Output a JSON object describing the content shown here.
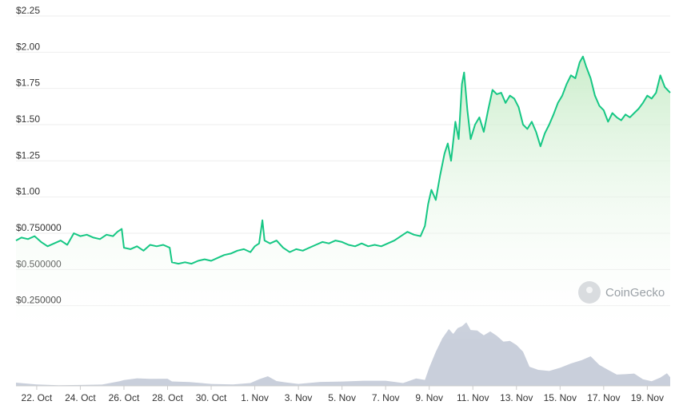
{
  "chart_data": {
    "type": "area",
    "title": "",
    "xlabel": "",
    "ylabel": "",
    "ylim": [
      0,
      2.25
    ],
    "grid": true,
    "y_ticks": [
      "$0.250000",
      "$0.500000",
      "$0.750000",
      "$1.00",
      "$1.25",
      "$1.50",
      "$1.75",
      "$2.00",
      "$2.25"
    ],
    "y_tick_values": [
      0.25,
      0.5,
      0.75,
      1.0,
      1.25,
      1.5,
      1.75,
      2.0,
      2.25
    ],
    "x_ticks": [
      "22. Oct",
      "24. Oct",
      "26. Oct",
      "28. Oct",
      "30. Oct",
      "1. Nov",
      "3. Nov",
      "5. Nov",
      "7. Nov",
      "9. Nov",
      "11. Nov",
      "13. Nov",
      "15. Nov",
      "17. Nov",
      "19. Nov"
    ],
    "x_tick_days": [
      1,
      3,
      5,
      7,
      9,
      11,
      13,
      15,
      17,
      19,
      21,
      23,
      25,
      27,
      29
    ],
    "x_range_days": [
      0.05,
      30.05
    ],
    "colors": {
      "line": "#16c784",
      "fill_top": "#c8ecc8",
      "volume": "#bfc7d5",
      "grid": "#eeeeee"
    },
    "price": [
      [
        0.05,
        0.7
      ],
      [
        0.3,
        0.72
      ],
      [
        0.6,
        0.71
      ],
      [
        0.9,
        0.73
      ],
      [
        1.2,
        0.69
      ],
      [
        1.5,
        0.66
      ],
      [
        1.8,
        0.68
      ],
      [
        2.1,
        0.7
      ],
      [
        2.4,
        0.67
      ],
      [
        2.7,
        0.75
      ],
      [
        3.0,
        0.73
      ],
      [
        3.3,
        0.74
      ],
      [
        3.6,
        0.72
      ],
      [
        3.9,
        0.71
      ],
      [
        4.2,
        0.74
      ],
      [
        4.5,
        0.73
      ],
      [
        4.7,
        0.76
      ],
      [
        4.9,
        0.78
      ],
      [
        5.0,
        0.65
      ],
      [
        5.3,
        0.64
      ],
      [
        5.6,
        0.66
      ],
      [
        5.9,
        0.63
      ],
      [
        6.2,
        0.67
      ],
      [
        6.5,
        0.66
      ],
      [
        6.8,
        0.67
      ],
      [
        7.1,
        0.65
      ],
      [
        7.2,
        0.55
      ],
      [
        7.5,
        0.54
      ],
      [
        7.8,
        0.55
      ],
      [
        8.1,
        0.54
      ],
      [
        8.4,
        0.56
      ],
      [
        8.7,
        0.57
      ],
      [
        9.0,
        0.56
      ],
      [
        9.3,
        0.58
      ],
      [
        9.6,
        0.6
      ],
      [
        9.9,
        0.61
      ],
      [
        10.2,
        0.63
      ],
      [
        10.5,
        0.64
      ],
      [
        10.8,
        0.62
      ],
      [
        11.0,
        0.66
      ],
      [
        11.2,
        0.68
      ],
      [
        11.35,
        0.84
      ],
      [
        11.45,
        0.7
      ],
      [
        11.7,
        0.68
      ],
      [
        12.0,
        0.7
      ],
      [
        12.3,
        0.65
      ],
      [
        12.6,
        0.62
      ],
      [
        12.9,
        0.64
      ],
      [
        13.2,
        0.63
      ],
      [
        13.5,
        0.65
      ],
      [
        13.8,
        0.67
      ],
      [
        14.1,
        0.69
      ],
      [
        14.4,
        0.68
      ],
      [
        14.7,
        0.7
      ],
      [
        15.0,
        0.69
      ],
      [
        15.3,
        0.67
      ],
      [
        15.6,
        0.66
      ],
      [
        15.9,
        0.68
      ],
      [
        16.2,
        0.66
      ],
      [
        16.5,
        0.67
      ],
      [
        16.8,
        0.66
      ],
      [
        17.1,
        0.68
      ],
      [
        17.4,
        0.7
      ],
      [
        17.7,
        0.73
      ],
      [
        18.0,
        0.76
      ],
      [
        18.3,
        0.74
      ],
      [
        18.6,
        0.73
      ],
      [
        18.8,
        0.8
      ],
      [
        18.95,
        0.95
      ],
      [
        19.1,
        1.05
      ],
      [
        19.3,
        0.98
      ],
      [
        19.5,
        1.15
      ],
      [
        19.7,
        1.3
      ],
      [
        19.85,
        1.37
      ],
      [
        20.0,
        1.25
      ],
      [
        20.2,
        1.52
      ],
      [
        20.35,
        1.4
      ],
      [
        20.5,
        1.78
      ],
      [
        20.6,
        1.86
      ],
      [
        20.75,
        1.6
      ],
      [
        20.9,
        1.4
      ],
      [
        21.1,
        1.5
      ],
      [
        21.3,
        1.55
      ],
      [
        21.5,
        1.45
      ],
      [
        21.7,
        1.6
      ],
      [
        21.9,
        1.74
      ],
      [
        22.1,
        1.71
      ],
      [
        22.3,
        1.72
      ],
      [
        22.5,
        1.65
      ],
      [
        22.7,
        1.7
      ],
      [
        22.9,
        1.68
      ],
      [
        23.1,
        1.62
      ],
      [
        23.3,
        1.5
      ],
      [
        23.5,
        1.47
      ],
      [
        23.7,
        1.52
      ],
      [
        23.9,
        1.45
      ],
      [
        24.1,
        1.35
      ],
      [
        24.3,
        1.44
      ],
      [
        24.5,
        1.5
      ],
      [
        24.7,
        1.57
      ],
      [
        24.9,
        1.65
      ],
      [
        25.1,
        1.7
      ],
      [
        25.3,
        1.78
      ],
      [
        25.5,
        1.84
      ],
      [
        25.7,
        1.82
      ],
      [
        25.9,
        1.93
      ],
      [
        26.05,
        1.97
      ],
      [
        26.2,
        1.9
      ],
      [
        26.4,
        1.82
      ],
      [
        26.6,
        1.7
      ],
      [
        26.8,
        1.63
      ],
      [
        27.0,
        1.6
      ],
      [
        27.2,
        1.52
      ],
      [
        27.4,
        1.58
      ],
      [
        27.6,
        1.55
      ],
      [
        27.8,
        1.53
      ],
      [
        28.0,
        1.57
      ],
      [
        28.2,
        1.55
      ],
      [
        28.4,
        1.58
      ],
      [
        28.6,
        1.61
      ],
      [
        28.8,
        1.65
      ],
      [
        29.0,
        1.7
      ],
      [
        29.2,
        1.68
      ],
      [
        29.4,
        1.72
      ],
      [
        29.6,
        1.84
      ],
      [
        29.8,
        1.76
      ],
      [
        30.05,
        1.72
      ]
    ],
    "volume_relative": [
      [
        0.05,
        0.02
      ],
      [
        1.0,
        0.04
      ],
      [
        2.0,
        0.03
      ],
      [
        3.0,
        0.04
      ],
      [
        4.0,
        0.03
      ],
      [
        4.8,
        0.04
      ],
      [
        5.0,
        0.08
      ],
      [
        5.6,
        0.12
      ],
      [
        6.2,
        0.11
      ],
      [
        7.0,
        0.08
      ],
      [
        7.2,
        0.05
      ],
      [
        8.0,
        0.04
      ],
      [
        9.0,
        0.03
      ],
      [
        10.0,
        0.04
      ],
      [
        10.8,
        0.06
      ],
      [
        11.2,
        0.11
      ],
      [
        11.6,
        0.12
      ],
      [
        12.0,
        0.1
      ],
      [
        12.4,
        0.05
      ],
      [
        13.0,
        0.04
      ],
      [
        14.0,
        0.05
      ],
      [
        15.0,
        0.04
      ],
      [
        16.0,
        0.05
      ],
      [
        17.0,
        0.06
      ],
      [
        17.8,
        0.07
      ],
      [
        18.4,
        0.09
      ],
      [
        18.8,
        0.12
      ],
      [
        19.0,
        0.3
      ],
      [
        19.3,
        0.55
      ],
      [
        19.6,
        0.72
      ],
      [
        19.9,
        0.85
      ],
      [
        20.1,
        0.78
      ],
      [
        20.3,
        0.9
      ],
      [
        20.5,
        0.95
      ],
      [
        20.7,
        1.0
      ],
      [
        20.9,
        0.85
      ],
      [
        21.2,
        0.88
      ],
      [
        21.5,
        0.8
      ],
      [
        21.8,
        0.82
      ],
      [
        22.1,
        0.75
      ],
      [
        22.4,
        0.7
      ],
      [
        22.7,
        0.72
      ],
      [
        23.0,
        0.62
      ],
      [
        23.3,
        0.5
      ],
      [
        23.6,
        0.3
      ],
      [
        24.0,
        0.22
      ],
      [
        24.5,
        0.2
      ],
      [
        25.0,
        0.25
      ],
      [
        25.5,
        0.32
      ],
      [
        26.0,
        0.38
      ],
      [
        26.4,
        0.45
      ],
      [
        26.8,
        0.35
      ],
      [
        27.2,
        0.22
      ],
      [
        27.6,
        0.18
      ],
      [
        28.0,
        0.2
      ],
      [
        28.4,
        0.16
      ],
      [
        28.8,
        0.12
      ],
      [
        29.2,
        0.08
      ],
      [
        29.6,
        0.1
      ],
      [
        29.9,
        0.18
      ],
      [
        30.05,
        0.14
      ]
    ]
  },
  "watermark": {
    "text": "CoinGecko"
  }
}
